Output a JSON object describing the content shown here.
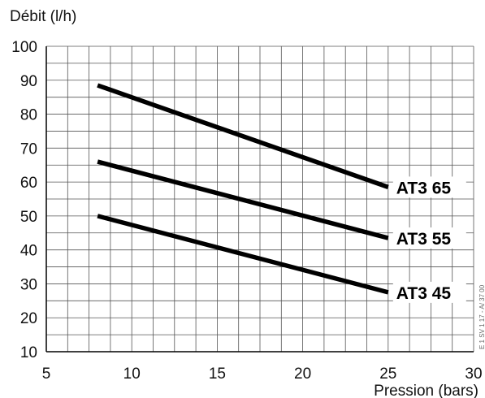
{
  "chart_data": {
    "type": "line",
    "title": "",
    "ylabel": "Débit (l/h)",
    "xlabel": "Pression (bars)",
    "xlim": [
      5,
      30
    ],
    "ylim": [
      10,
      100
    ],
    "xticks": [
      5,
      10,
      15,
      20,
      25,
      30
    ],
    "yticks": [
      10,
      20,
      30,
      40,
      50,
      60,
      70,
      80,
      90,
      100
    ],
    "grid": true,
    "grid_x_step": 1.25,
    "grid_y_step": 5,
    "series": [
      {
        "name": "AT3 65",
        "x": [
          8,
          25
        ],
        "y": [
          88.5,
          58.5
        ]
      },
      {
        "name": "AT3 55",
        "x": [
          8,
          25
        ],
        "y": [
          66,
          43.5
        ]
      },
      {
        "name": "AT3 45",
        "x": [
          8,
          25
        ],
        "y": [
          50,
          27.5
        ]
      }
    ],
    "side_note": "E 1 SV 1 17 - A/ 37 00",
    "line_color": "#000000",
    "grid_color": "#555555"
  }
}
